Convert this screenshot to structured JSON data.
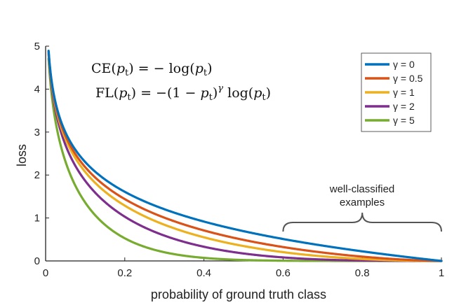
{
  "chart_data": {
    "type": "line",
    "title": "",
    "xlabel": "probability of ground truth class",
    "ylabel": "loss",
    "xlim": [
      0,
      1
    ],
    "ylim": [
      0,
      5
    ],
    "xticks": [
      0,
      0.2,
      0.4,
      0.6,
      0.8,
      1
    ],
    "xtick_labels": [
      "0",
      "0.2",
      "0.4",
      "0.6",
      "0.8",
      "1"
    ],
    "yticks": [
      0,
      1,
      2,
      3,
      4,
      5
    ],
    "ytick_labels": [
      "0",
      "1",
      "2",
      "3",
      "4",
      "5"
    ],
    "grid": false,
    "legend_position": "top-right",
    "x": [
      0.01,
      0.05,
      0.1,
      0.2,
      0.3,
      0.4,
      0.5,
      0.6,
      0.7,
      0.8,
      0.9,
      1.0
    ],
    "series": [
      {
        "name": "γ = 0",
        "gamma": 0,
        "color": "#0072BD",
        "values": [
          4.605,
          2.996,
          2.303,
          1.609,
          1.204,
          0.916,
          0.693,
          0.511,
          0.357,
          0.223,
          0.105,
          0.0
        ]
      },
      {
        "name": "γ = 0.5",
        "gamma": 0.5,
        "color": "#D95319",
        "values": [
          4.582,
          2.92,
          2.184,
          1.44,
          1.007,
          0.71,
          0.49,
          0.323,
          0.195,
          0.1,
          0.033,
          0.0
        ]
      },
      {
        "name": "γ = 1",
        "gamma": 1,
        "color": "#EDB120",
        "values": [
          4.559,
          2.846,
          2.072,
          1.288,
          0.843,
          0.55,
          0.347,
          0.204,
          0.107,
          0.045,
          0.011,
          0.0
        ]
      },
      {
        "name": "γ = 2",
        "gamma": 2,
        "color": "#7E2F8E",
        "values": [
          4.513,
          2.704,
          1.865,
          1.03,
          0.59,
          0.33,
          0.173,
          0.082,
          0.032,
          0.009,
          0.001,
          0.0
        ]
      },
      {
        "name": "γ = 5",
        "gamma": 5,
        "color": "#77AC30",
        "values": [
          4.381,
          2.318,
          1.36,
          0.527,
          0.202,
          0.071,
          0.022,
          0.005,
          0.001,
          0.0,
          0.0,
          0.0
        ]
      }
    ],
    "equations": {
      "ce_lhs": "CE(",
      "ce_pt": "p",
      "ce_sub": "t",
      "ce_rhs_1": ") = − log(",
      "ce_rhs_2": ")",
      "fl_lhs": "FL(",
      "fl_rhs_1": ") = −(1 − ",
      "fl_rhs_2": ")",
      "fl_gamma": "γ",
      "fl_rhs_3": " log(",
      "fl_rhs_4": ")"
    },
    "annotation": {
      "line1": "well-classified",
      "line2": "examples",
      "x_start": 0.6,
      "x_end": 1.0
    }
  }
}
